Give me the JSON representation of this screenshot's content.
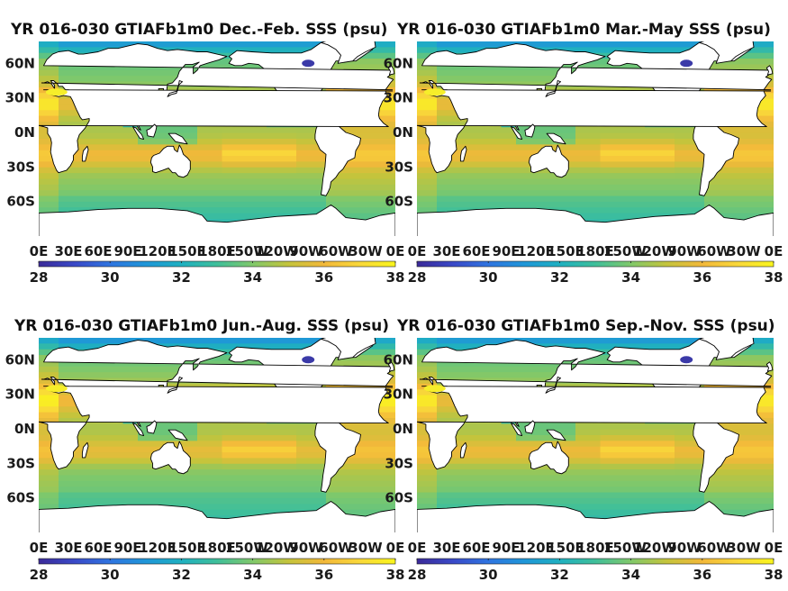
{
  "figure": {
    "colormap": [
      "#3b2a98",
      "#3a49c7",
      "#2f74e0",
      "#1f96d8",
      "#1fb0c0",
      "#3fbf9a",
      "#80c86a",
      "#c4c43c",
      "#f2b83a",
      "#f9d83a",
      "#f9f51c"
    ],
    "land_color": "#ffffff",
    "coast_color": "#000000"
  },
  "chart_data": [
    {
      "type": "heatmap",
      "title": "YR 016-030 GTIAFb1m0 Dec.-Feb. SSS (psu)",
      "x_ticks": [
        "0E",
        "30E",
        "60E",
        "90E",
        "120E",
        "150E",
        "180E",
        "150W",
        "120W",
        "90W",
        "60W",
        "30W",
        "0E"
      ],
      "y_ticks": [
        "60N",
        "30N",
        "0N",
        "30S",
        "60S"
      ],
      "colorbar": {
        "ticks": [
          28,
          30,
          32,
          34,
          36,
          38
        ],
        "range": [
          28,
          38
        ]
      }
    },
    {
      "type": "heatmap",
      "title": "YR 016-030 GTIAFb1m0 Mar.-May SSS (psu)",
      "x_ticks": [
        "0E",
        "30E",
        "60E",
        "90E",
        "120E",
        "150E",
        "180E",
        "150W",
        "120W",
        "90W",
        "60W",
        "30W",
        "0E"
      ],
      "y_ticks": [
        "60N",
        "30N",
        "0N",
        "30S",
        "60S"
      ],
      "colorbar": {
        "ticks": [
          28,
          30,
          32,
          34,
          36,
          38
        ],
        "range": [
          28,
          38
        ]
      }
    },
    {
      "type": "heatmap",
      "title": "YR 016-030 GTIAFb1m0 Jun.-Aug. SSS (psu)",
      "x_ticks": [
        "0E",
        "30E",
        "60E",
        "90E",
        "120E",
        "150E",
        "180E",
        "150W",
        "120W",
        "90W",
        "60W",
        "30W",
        "0E"
      ],
      "y_ticks": [
        "60N",
        "30N",
        "0N",
        "30S",
        "60S"
      ],
      "colorbar": {
        "ticks": [
          28,
          30,
          32,
          34,
          36,
          38
        ],
        "range": [
          28,
          38
        ]
      }
    },
    {
      "type": "heatmap",
      "title": "YR 016-030 GTIAFb1m0 Sep.-Nov. SSS (psu)",
      "x_ticks": [
        "0E",
        "30E",
        "60E",
        "90E",
        "120E",
        "150E",
        "180E",
        "150W",
        "120W",
        "90W",
        "60W",
        "30W",
        "0E"
      ],
      "y_ticks": [
        "60N",
        "30N",
        "0N",
        "30S",
        "60S"
      ],
      "colorbar": {
        "ticks": [
          28,
          30,
          32,
          34,
          36,
          38
        ],
        "range": [
          28,
          38
        ]
      }
    }
  ]
}
